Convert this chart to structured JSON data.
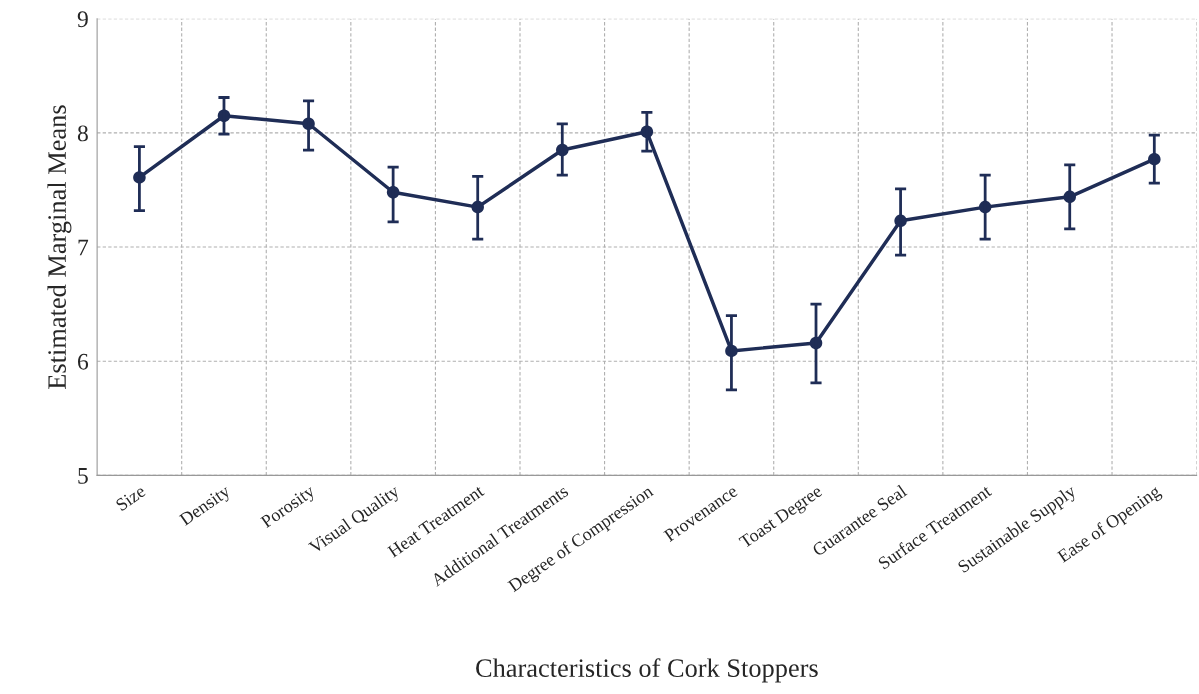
{
  "chart_data": {
    "type": "line",
    "xlabel": "Characteristics of Cork Stoppers",
    "ylabel": "Estimated Marginal Means",
    "categories": [
      "Size",
      "Density",
      "Porosity",
      "Visual Quality",
      "Heat Treatment",
      "Additional Treatments",
      "Degree of Compression",
      "Provenance",
      "Toast Degree",
      "Guarantee Seal",
      "Surface Treatment",
      "Sustainable Supply",
      "Ease of Opening"
    ],
    "series": [
      {
        "color": "#1f2d56",
        "values": [
          7.61,
          8.15,
          8.08,
          7.48,
          7.35,
          7.85,
          8.01,
          6.09,
          6.16,
          7.23,
          7.35,
          7.44,
          7.77
        ],
        "errors": [
          [
            7.32,
            7.88
          ],
          [
            7.99,
            8.31
          ],
          [
            7.85,
            8.28
          ],
          [
            7.22,
            7.7
          ],
          [
            7.07,
            7.62
          ],
          [
            7.63,
            8.08
          ],
          [
            7.84,
            8.18
          ],
          [
            5.75,
            6.4
          ],
          [
            5.81,
            6.5
          ],
          [
            6.93,
            7.51
          ],
          [
            7.07,
            7.63
          ],
          [
            7.16,
            7.72
          ],
          [
            7.56,
            7.98
          ]
        ]
      }
    ],
    "ylim": [
      5,
      9
    ],
    "yticks": [
      5,
      6,
      7,
      8,
      9
    ],
    "grid": true,
    "marker": "circle",
    "line_style": "solid",
    "legend": false
  }
}
